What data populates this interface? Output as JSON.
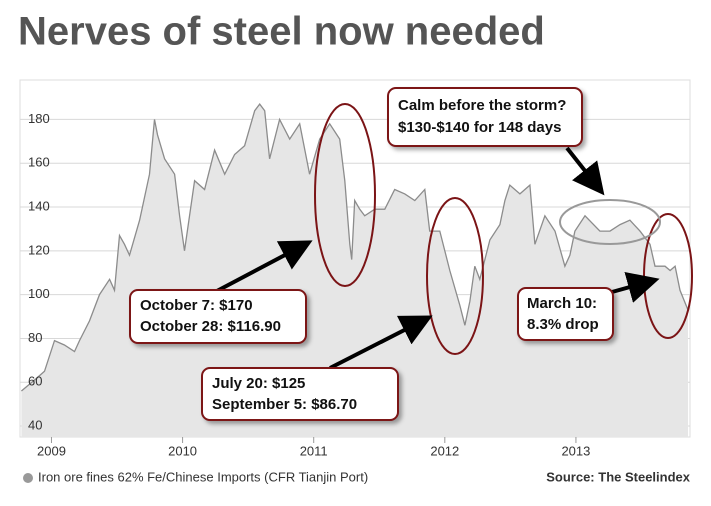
{
  "chart_data": {
    "type": "area",
    "title": "Nerves of steel now needed",
    "source": "Source: The Steelindex",
    "x": [
      2008.771,
      2008.87,
      2008.947,
      2009.023,
      2009.099,
      2009.176,
      2009.214,
      2009.29,
      2009.366,
      2009.443,
      2009.481,
      2009.519,
      2009.557,
      2009.595,
      2009.672,
      2009.748,
      2009.786,
      2009.809,
      2009.863,
      2009.939,
      2009.977,
      2010.015,
      2010.092,
      2010.168,
      2010.244,
      2010.321,
      2010.397,
      2010.473,
      2010.55,
      2010.588,
      2010.626,
      2010.664,
      2010.74,
      2010.817,
      2010.893,
      2010.969,
      2011.046,
      2011.122,
      2011.198,
      2011.237,
      2011.275,
      2011.29,
      2011.313,
      2011.351,
      2011.389,
      2011.466,
      2011.542,
      2011.618,
      2011.695,
      2011.771,
      2011.847,
      2011.885,
      2011.962,
      2012.038,
      2012.115,
      2012.153,
      2012.191,
      2012.229,
      2012.267,
      2012.344,
      2012.42,
      2012.458,
      2012.496,
      2012.573,
      2012.649,
      2012.687,
      2012.763,
      2012.84,
      2012.916,
      2012.954,
      2012.992,
      2013.069,
      2013.183,
      2013.26,
      2013.336,
      2013.412,
      2013.489,
      2013.565,
      2013.603,
      2013.679,
      2013.718,
      2013.756,
      2013.794,
      2013.855
    ],
    "series": [
      {
        "name": "Iron ore fines 62% Fe/Chinese Imports (CFR Tianjin Port)",
        "color": "#8c8c8c",
        "fill": "#e6e6e6",
        "values": [
          56,
          61,
          65,
          79,
          77,
          74,
          79,
          88,
          100,
          107,
          102,
          127,
          123,
          118,
          134,
          155,
          180,
          173,
          162,
          155,
          136,
          120,
          152,
          148,
          166,
          155,
          164,
          168,
          184,
          187,
          184,
          162,
          180,
          171,
          178,
          155,
          171,
          178,
          171,
          152,
          123,
          116,
          143,
          139,
          136,
          139,
          139,
          148,
          146,
          143,
          148,
          129,
          129,
          111,
          95,
          86,
          97,
          113,
          107,
          125,
          132,
          143,
          150,
          146,
          150,
          123,
          136,
          129,
          113,
          118,
          129,
          136,
          129,
          129,
          132,
          134,
          129,
          123,
          113,
          113,
          111,
          113,
          102,
          93
        ]
      }
    ],
    "xlim": [
      2008.76,
      2013.87
    ],
    "ylim": [
      35,
      198
    ],
    "xticks": [
      2009,
      2010,
      2011,
      2012,
      2013
    ],
    "yticks": [
      40,
      60,
      80,
      100,
      120,
      140,
      160,
      180
    ],
    "grid": true,
    "annotations": [
      [
        "Calm before the storm?",
        "$130-$140 for 148 days"
      ],
      [
        "October 7: $170",
        "October 28: $116.90"
      ],
      [
        "July 20: $125",
        "September 5: $86.70"
      ],
      [
        "March 10:",
        "8.3% drop"
      ]
    ]
  }
}
